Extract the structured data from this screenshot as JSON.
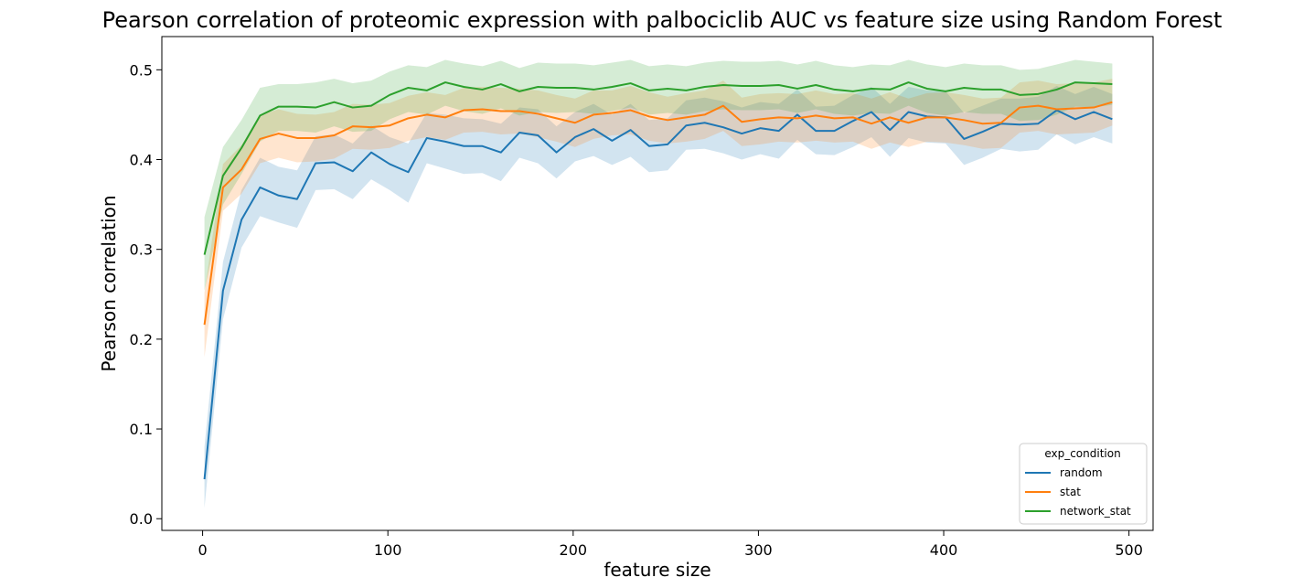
{
  "chart_data": {
    "type": "line",
    "title": "Pearson correlation of proteomic expression with palbociclib AUC vs feature size using Random Forest",
    "xlabel": "feature size",
    "ylabel": "Pearson correlation",
    "xlim": [
      -22,
      513
    ],
    "ylim": [
      -0.013,
      0.537
    ],
    "xticks": [
      0,
      100,
      200,
      300,
      400,
      500
    ],
    "yticks": [
      0.0,
      0.1,
      0.2,
      0.3,
      0.4,
      0.5
    ],
    "grid": false,
    "legend": {
      "title": "exp_condition",
      "placement": "lower-right"
    },
    "x": [
      1,
      11,
      21,
      31,
      41,
      51,
      61,
      71,
      81,
      91,
      101,
      111,
      121,
      131,
      141,
      151,
      161,
      171,
      181,
      191,
      201,
      211,
      221,
      231,
      241,
      251,
      261,
      271,
      281,
      291,
      301,
      311,
      321,
      331,
      341,
      351,
      361,
      371,
      381,
      391,
      401,
      411,
      421,
      431,
      441,
      451,
      461,
      471,
      481,
      491
    ],
    "series": [
      {
        "name": "random",
        "color": "#1f77b4",
        "values": [
          0.044,
          0.254,
          0.333,
          0.369,
          0.36,
          0.356,
          0.396,
          0.397,
          0.387,
          0.408,
          0.395,
          0.386,
          0.424,
          0.42,
          0.415,
          0.415,
          0.408,
          0.43,
          0.427,
          0.408,
          0.425,
          0.434,
          0.421,
          0.433,
          0.415,
          0.417,
          0.438,
          0.441,
          0.436,
          0.429,
          0.435,
          0.432,
          0.45,
          0.432,
          0.432,
          0.443,
          0.453,
          0.433,
          0.453,
          0.448,
          0.447,
          0.423,
          0.431,
          0.44,
          0.439,
          0.44,
          0.455,
          0.445,
          0.453,
          0.445
        ],
        "lower": [
          0.012,
          0.222,
          0.302,
          0.337,
          0.33,
          0.324,
          0.366,
          0.367,
          0.356,
          0.378,
          0.366,
          0.352,
          0.396,
          0.39,
          0.384,
          0.385,
          0.376,
          0.402,
          0.396,
          0.379,
          0.398,
          0.404,
          0.394,
          0.403,
          0.386,
          0.388,
          0.411,
          0.412,
          0.407,
          0.4,
          0.406,
          0.401,
          0.422,
          0.406,
          0.405,
          0.414,
          0.425,
          0.403,
          0.424,
          0.419,
          0.418,
          0.394,
          0.402,
          0.412,
          0.409,
          0.411,
          0.428,
          0.417,
          0.425,
          0.418
        ],
        "upper": [
          0.08,
          0.286,
          0.366,
          0.402,
          0.392,
          0.388,
          0.426,
          0.428,
          0.418,
          0.438,
          0.425,
          0.418,
          0.452,
          0.45,
          0.446,
          0.445,
          0.44,
          0.458,
          0.456,
          0.437,
          0.453,
          0.462,
          0.45,
          0.462,
          0.444,
          0.446,
          0.466,
          0.469,
          0.465,
          0.458,
          0.464,
          0.462,
          0.478,
          0.459,
          0.46,
          0.472,
          0.481,
          0.462,
          0.481,
          0.477,
          0.476,
          0.452,
          0.46,
          0.468,
          0.468,
          0.47,
          0.482,
          0.473,
          0.481,
          0.473
        ]
      },
      {
        "name": "stat",
        "color": "#ff7f0e",
        "values": [
          0.216,
          0.369,
          0.389,
          0.423,
          0.429,
          0.424,
          0.424,
          0.427,
          0.437,
          0.436,
          0.438,
          0.446,
          0.45,
          0.447,
          0.455,
          0.456,
          0.454,
          0.454,
          0.451,
          0.446,
          0.441,
          0.45,
          0.452,
          0.455,
          0.448,
          0.444,
          0.447,
          0.45,
          0.46,
          0.442,
          0.445,
          0.447,
          0.446,
          0.449,
          0.446,
          0.447,
          0.44,
          0.447,
          0.441,
          0.447,
          0.447,
          0.444,
          0.44,
          0.441,
          0.458,
          0.46,
          0.456,
          0.457,
          0.458,
          0.464
        ],
        "lower": [
          0.18,
          0.343,
          0.362,
          0.396,
          0.402,
          0.397,
          0.398,
          0.401,
          0.412,
          0.411,
          0.413,
          0.421,
          0.425,
          0.422,
          0.43,
          0.431,
          0.428,
          0.429,
          0.425,
          0.42,
          0.414,
          0.423,
          0.427,
          0.428,
          0.421,
          0.418,
          0.42,
          0.423,
          0.432,
          0.415,
          0.417,
          0.42,
          0.419,
          0.421,
          0.419,
          0.42,
          0.412,
          0.419,
          0.414,
          0.42,
          0.419,
          0.416,
          0.412,
          0.413,
          0.43,
          0.432,
          0.428,
          0.429,
          0.43,
          0.438
        ],
        "upper": [
          0.252,
          0.395,
          0.416,
          0.45,
          0.456,
          0.451,
          0.45,
          0.453,
          0.462,
          0.461,
          0.463,
          0.471,
          0.475,
          0.472,
          0.48,
          0.481,
          0.48,
          0.479,
          0.477,
          0.472,
          0.468,
          0.477,
          0.477,
          0.482,
          0.475,
          0.47,
          0.474,
          0.477,
          0.488,
          0.469,
          0.473,
          0.474,
          0.473,
          0.477,
          0.473,
          0.474,
          0.468,
          0.475,
          0.468,
          0.474,
          0.475,
          0.472,
          0.468,
          0.469,
          0.486,
          0.488,
          0.484,
          0.485,
          0.486,
          0.49
        ]
      },
      {
        "name": "network_stat",
        "color": "#2ca02c",
        "values": [
          0.294,
          0.382,
          0.413,
          0.449,
          0.459,
          0.459,
          0.458,
          0.464,
          0.458,
          0.46,
          0.472,
          0.48,
          0.477,
          0.486,
          0.481,
          0.478,
          0.484,
          0.476,
          0.481,
          0.48,
          0.48,
          0.478,
          0.481,
          0.485,
          0.477,
          0.479,
          0.477,
          0.481,
          0.483,
          0.482,
          0.482,
          0.483,
          0.479,
          0.483,
          0.478,
          0.476,
          0.479,
          0.478,
          0.486,
          0.479,
          0.476,
          0.48,
          0.478,
          0.478,
          0.472,
          0.473,
          0.478,
          0.486,
          0.485,
          0.484
        ],
        "lower": [
          0.254,
          0.35,
          0.384,
          0.42,
          0.432,
          0.432,
          0.43,
          0.437,
          0.431,
          0.432,
          0.445,
          0.453,
          0.45,
          0.46,
          0.454,
          0.451,
          0.457,
          0.449,
          0.453,
          0.452,
          0.453,
          0.451,
          0.454,
          0.458,
          0.45,
          0.452,
          0.45,
          0.454,
          0.456,
          0.455,
          0.455,
          0.456,
          0.452,
          0.456,
          0.451,
          0.449,
          0.452,
          0.451,
          0.46,
          0.452,
          0.449,
          0.453,
          0.451,
          0.451,
          0.443,
          0.444,
          0.45,
          0.459,
          0.458,
          0.461
        ],
        "upper": [
          0.336,
          0.414,
          0.444,
          0.48,
          0.484,
          0.484,
          0.486,
          0.49,
          0.485,
          0.488,
          0.498,
          0.505,
          0.503,
          0.511,
          0.507,
          0.504,
          0.51,
          0.502,
          0.508,
          0.507,
          0.507,
          0.505,
          0.508,
          0.511,
          0.504,
          0.506,
          0.504,
          0.508,
          0.51,
          0.509,
          0.509,
          0.51,
          0.506,
          0.51,
          0.505,
          0.503,
          0.506,
          0.505,
          0.511,
          0.506,
          0.503,
          0.507,
          0.505,
          0.505,
          0.5,
          0.501,
          0.506,
          0.511,
          0.509,
          0.507
        ]
      }
    ]
  }
}
